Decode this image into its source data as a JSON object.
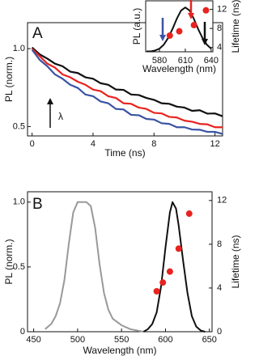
{
  "chart_data": [
    {
      "type": "line",
      "label": "A",
      "xlabel": "Time (ns)",
      "ylabel": "PL (norm.)",
      "annotation": "λ",
      "log_y": true,
      "xlim": [
        -0.3,
        12.5
      ],
      "ylim": [
        0.46,
        1.26
      ],
      "xticks": [
        0,
        4,
        8,
        12
      ],
      "yticks": [
        {
          "value": 1,
          "label": "1.0"
        },
        0.5
      ],
      "series": [
        {
          "color": "#111111",
          "style": "line",
          "x": [
            0,
            0.5,
            1,
            1.5,
            2,
            2.5,
            3,
            3.5,
            4,
            4.5,
            5,
            5.5,
            6,
            6.5,
            7,
            7.5,
            8,
            8.5,
            9,
            9.5,
            10,
            10.5,
            11,
            11.5,
            12,
            12.5
          ],
          "values": [
            1.01,
            0.95,
            0.915,
            0.875,
            0.855,
            0.815,
            0.805,
            0.775,
            0.765,
            0.735,
            0.725,
            0.695,
            0.693,
            0.665,
            0.662,
            0.645,
            0.634,
            0.615,
            0.612,
            0.597,
            0.592,
            0.575,
            0.578,
            0.561,
            0.562,
            0.548
          ]
        },
        {
          "color": "#e8231f",
          "style": "line",
          "x": [
            0,
            0.5,
            1,
            1.5,
            2,
            2.5,
            3,
            3.5,
            4,
            4.5,
            5,
            5.5,
            6,
            6.5,
            7,
            7.5,
            8,
            8.5,
            9,
            9.5,
            10,
            10.5,
            11,
            11.5,
            12,
            12.5
          ],
          "values": [
            1.0,
            0.935,
            0.875,
            0.845,
            0.795,
            0.775,
            0.745,
            0.725,
            0.695,
            0.685,
            0.655,
            0.645,
            0.615,
            0.612,
            0.592,
            0.585,
            0.565,
            0.562,
            0.545,
            0.542,
            0.527,
            0.522,
            0.512,
            0.51,
            0.497,
            0.497
          ]
        },
        {
          "color": "#3a53a4",
          "style": "line",
          "x": [
            0,
            0.5,
            1,
            1.5,
            2,
            2.5,
            3,
            3.5,
            4,
            4.5,
            5,
            5.5,
            6,
            6.5,
            7,
            7.5,
            8,
            8.5,
            9,
            9.5,
            10,
            10.5,
            11,
            11.5,
            12,
            12.5
          ],
          "values": [
            0.99,
            0.905,
            0.855,
            0.795,
            0.765,
            0.725,
            0.705,
            0.665,
            0.655,
            0.625,
            0.615,
            0.585,
            0.582,
            0.555,
            0.553,
            0.535,
            0.532,
            0.515,
            0.512,
            0.497,
            0.497,
            0.487,
            0.486,
            0.477,
            0.477,
            0.468
          ]
        }
      ]
    },
    {
      "type": "line",
      "xlabel": "Wavelength (nm)",
      "ylabel": "PL (a.u.)",
      "y2label": "Lifetime (ns)",
      "xlim": [
        564,
        642
      ],
      "ylim": [
        0,
        1.15
      ],
      "y2lim": [
        3.1,
        13.8
      ],
      "xticks": [
        580,
        610,
        640
      ],
      "y2ticks": [
        4,
        8,
        12
      ],
      "series": [
        {
          "color": "#111111",
          "style": "line",
          "x": [
            565,
            570,
            575,
            580,
            585,
            590,
            595,
            600,
            605,
            610,
            615,
            620,
            625,
            630,
            635,
            640
          ],
          "values": [
            0.01,
            0.01,
            0.03,
            0.07,
            0.16,
            0.31,
            0.51,
            0.74,
            0.93,
            1.0,
            0.93,
            0.74,
            0.51,
            0.31,
            0.16,
            0.07
          ]
        },
        {
          "color": "#e8231f",
          "style": "dots",
          "axis": "y2",
          "x": [
            592,
            603,
            620,
            634
          ],
          "values": [
            6.5,
            7.4,
            8.7,
            11.8
          ]
        }
      ]
    },
    {
      "type": "line",
      "label": "B",
      "xlabel": "Wavelength (nm)",
      "ylabel": "PL (norm.)",
      "y2label": "Lifetime (ns)",
      "xlim": [
        443,
        653
      ],
      "ylim": [
        0,
        1.08
      ],
      "y2lim": [
        0,
        12.8
      ],
      "xticks": [
        450,
        500,
        550,
        600,
        650
      ],
      "yticks": [
        0,
        0.5,
        {
          "value": 1,
          "label": "1.0"
        }
      ],
      "y2ticks": [
        0,
        4,
        8,
        12
      ],
      "series": [
        {
          "color": "#999999",
          "style": "line",
          "x": [
            463,
            470,
            475,
            480,
            485,
            490,
            495,
            500,
            510,
            515,
            520,
            525,
            530,
            535,
            540,
            550,
            560,
            575
          ],
          "values": [
            0.02,
            0.06,
            0.12,
            0.22,
            0.4,
            0.68,
            0.92,
            1.0,
            1.0,
            0.97,
            0.8,
            0.52,
            0.3,
            0.17,
            0.1,
            0.05,
            0.02,
            0.0
          ]
        },
        {
          "color": "#111111",
          "style": "line",
          "x": [
            575,
            580,
            585,
            590,
            595,
            600,
            605,
            608,
            612,
            615,
            620,
            625,
            630,
            635,
            640,
            645
          ],
          "values": [
            0,
            0.02,
            0.06,
            0.15,
            0.35,
            0.65,
            0.92,
            1.0,
            0.95,
            0.82,
            0.55,
            0.3,
            0.12,
            0.04,
            0.01,
            0
          ]
        },
        {
          "color": "#e8231f",
          "style": "dots",
          "axis": "y2",
          "x": [
            590,
            597,
            605,
            615,
            627
          ],
          "values": [
            3.7,
            4.5,
            5.5,
            7.6,
            10.8
          ]
        }
      ]
    }
  ]
}
